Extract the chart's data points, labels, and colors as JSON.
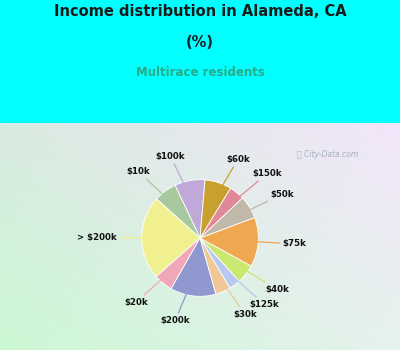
{
  "title1": "Income distribution in Alameda, CA",
  "title2": "(%)",
  "subtitle": "Multirace residents",
  "title_color": "#1a1a1a",
  "subtitle_color": "#2aaa88",
  "bg_color": "#00ffff",
  "watermark": "City-Data.com",
  "labels": [
    "$100k",
    "$10k",
    "> $200k",
    "$20k",
    "$200k",
    "$30k",
    "$125k",
    "$40k",
    "$75k",
    "$50k",
    "$150k",
    "$60k"
  ],
  "values": [
    8,
    6,
    22,
    5,
    12,
    4,
    3,
    5,
    13,
    6,
    4,
    7
  ],
  "colors": [
    "#c0a8d8",
    "#a8c8a0",
    "#f0f090",
    "#f0a8b8",
    "#9098d0",
    "#f0c898",
    "#b8c8f0",
    "#c8e870",
    "#f0a850",
    "#c0b8a8",
    "#e08898",
    "#c8a030"
  ],
  "startangle": 85
}
